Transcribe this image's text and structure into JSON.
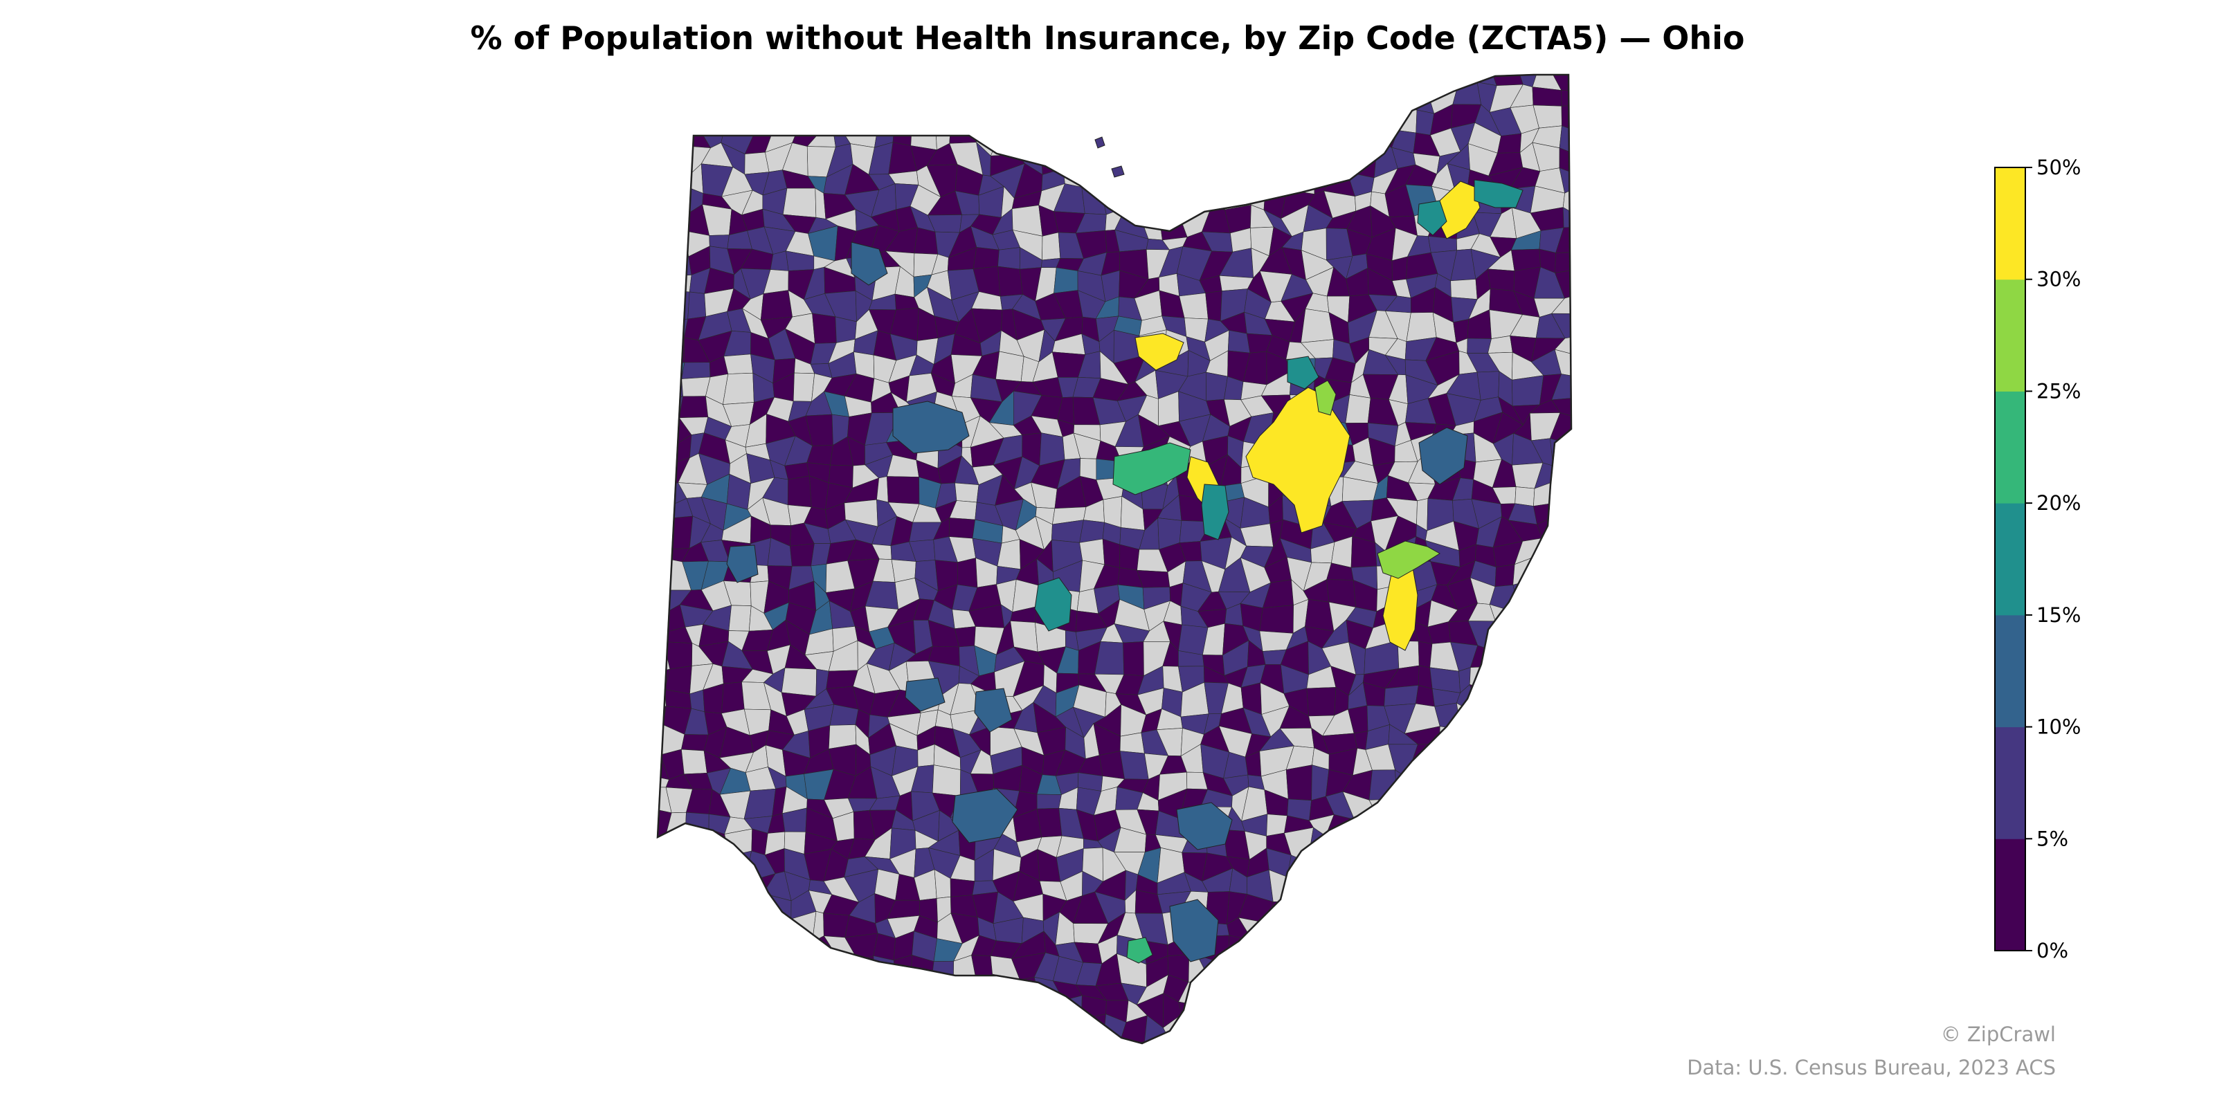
{
  "title": "% of Population without Health Insurance, by Zip Code (ZCTA5) — Ohio",
  "region": "Ohio",
  "legend": {
    "bins": [
      {
        "min": 0,
        "max": 5,
        "color": "#440154"
      },
      {
        "min": 5,
        "max": 10,
        "color": "#453781"
      },
      {
        "min": 10,
        "max": 15,
        "color": "#33638d"
      },
      {
        "min": 15,
        "max": 20,
        "color": "#20908d"
      },
      {
        "min": 20,
        "max": 25,
        "color": "#35b779"
      },
      {
        "min": 25,
        "max": 30,
        "color": "#8fd744"
      },
      {
        "min": 30,
        "max": 50,
        "color": "#fde725"
      }
    ],
    "tick_labels": [
      "0%",
      "5%",
      "10%",
      "15%",
      "20%",
      "25%",
      "30%",
      "50%"
    ],
    "no_data_color": "#d3d3d3"
  },
  "credits": {
    "brand": "© ZipCrawl",
    "source": "Data: U.S. Census Bureau, 2023 ACS"
  }
}
